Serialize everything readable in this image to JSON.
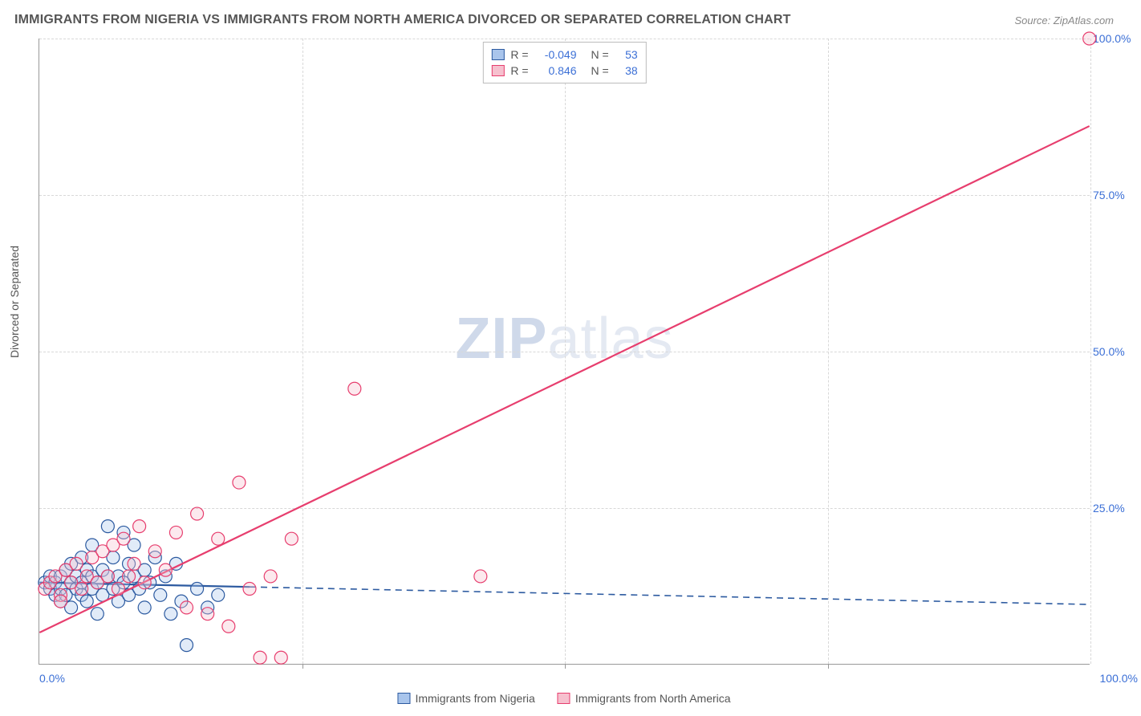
{
  "title": "IMMIGRANTS FROM NIGERIA VS IMMIGRANTS FROM NORTH AMERICA DIVORCED OR SEPARATED CORRELATION CHART",
  "source": "Source: ZipAtlas.com",
  "y_axis_label": "Divorced or Separated",
  "watermark": {
    "a": "ZIP",
    "b": "atlas"
  },
  "chart": {
    "type": "scatter",
    "xlim": [
      0,
      100
    ],
    "ylim": [
      0,
      100
    ],
    "xticks": [
      0,
      25,
      50,
      75,
      100
    ],
    "yticks": [
      25,
      50,
      75,
      100
    ],
    "xtick_labels": [
      "0.0%",
      "",
      "",
      "",
      "100.0%"
    ],
    "ytick_labels": [
      "25.0%",
      "50.0%",
      "75.0%",
      "100.0%"
    ],
    "grid_color": "#d8d8d8",
    "background_color": "#ffffff",
    "axis_color": "#999999",
    "tick_font_color": "#3b6fd6",
    "marker_radius": 8
  },
  "series": [
    {
      "name": "Immigrants from Nigeria",
      "fill": "#a9c5ec",
      "stroke": "#2c5aa0",
      "r_value": "-0.049",
      "n_value": "53",
      "trend": {
        "x1": 0,
        "y1": 13.0,
        "x2": 100,
        "y2": 9.5,
        "solid_until_x": 20
      },
      "points": [
        [
          0.5,
          13
        ],
        [
          1,
          12
        ],
        [
          1,
          14
        ],
        [
          1.5,
          11
        ],
        [
          1.5,
          13
        ],
        [
          2,
          10
        ],
        [
          2,
          12
        ],
        [
          2,
          14
        ],
        [
          2.5,
          15
        ],
        [
          2.5,
          11
        ],
        [
          3,
          13
        ],
        [
          3,
          16
        ],
        [
          3,
          9
        ],
        [
          3.5,
          12
        ],
        [
          3.5,
          14
        ],
        [
          4,
          11
        ],
        [
          4,
          13
        ],
        [
          4,
          17
        ],
        [
          4.5,
          15
        ],
        [
          4.5,
          10
        ],
        [
          5,
          12
        ],
        [
          5,
          14
        ],
        [
          5,
          19
        ],
        [
          5.5,
          13
        ],
        [
          5.5,
          8
        ],
        [
          6,
          15
        ],
        [
          6,
          11
        ],
        [
          6.5,
          14
        ],
        [
          6.5,
          22
        ],
        [
          7,
          12
        ],
        [
          7,
          17
        ],
        [
          7.5,
          10
        ],
        [
          7.5,
          14
        ],
        [
          8,
          21
        ],
        [
          8,
          13
        ],
        [
          8.5,
          16
        ],
        [
          8.5,
          11
        ],
        [
          9,
          14
        ],
        [
          9,
          19
        ],
        [
          9.5,
          12
        ],
        [
          10,
          15
        ],
        [
          10,
          9
        ],
        [
          10.5,
          13
        ],
        [
          11,
          17
        ],
        [
          11.5,
          11
        ],
        [
          12,
          14
        ],
        [
          12.5,
          8
        ],
        [
          13,
          16
        ],
        [
          13.5,
          10
        ],
        [
          14,
          3
        ],
        [
          15,
          12
        ],
        [
          16,
          9
        ],
        [
          17,
          11
        ]
      ]
    },
    {
      "name": "Immigrants from North America",
      "fill": "#f6c0ce",
      "stroke": "#e73e6e",
      "r_value": "0.846",
      "n_value": "38",
      "trend": {
        "x1": 0,
        "y1": 5.0,
        "x2": 100,
        "y2": 86.0,
        "solid_until_x": 100
      },
      "points": [
        [
          0.5,
          12
        ],
        [
          1,
          13
        ],
        [
          1.5,
          14
        ],
        [
          2,
          11
        ],
        [
          2.5,
          15
        ],
        [
          3,
          13
        ],
        [
          3.5,
          16
        ],
        [
          4,
          12
        ],
        [
          4.5,
          14
        ],
        [
          5,
          17
        ],
        [
          5.5,
          13
        ],
        [
          6,
          18
        ],
        [
          6.5,
          14
        ],
        [
          7,
          19
        ],
        [
          7.5,
          12
        ],
        [
          8,
          20
        ],
        [
          8.5,
          14
        ],
        [
          9,
          16
        ],
        [
          9.5,
          22
        ],
        [
          10,
          13
        ],
        [
          11,
          18
        ],
        [
          12,
          15
        ],
        [
          13,
          21
        ],
        [
          14,
          9
        ],
        [
          15,
          24
        ],
        [
          16,
          8
        ],
        [
          17,
          20
        ],
        [
          18,
          6
        ],
        [
          19,
          29
        ],
        [
          20,
          12
        ],
        [
          21,
          1
        ],
        [
          22,
          14
        ],
        [
          23,
          1
        ],
        [
          24,
          20
        ],
        [
          30,
          44
        ],
        [
          42,
          14
        ],
        [
          100,
          100
        ],
        [
          2,
          10
        ]
      ]
    }
  ],
  "rn_legend_label_r": "R =",
  "rn_legend_label_n": "N ="
}
